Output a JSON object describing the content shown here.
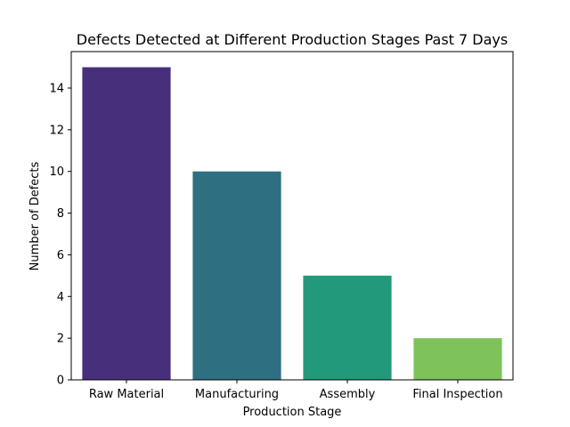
{
  "chart_data": {
    "type": "bar",
    "title": "Defects Detected at Different Production Stages Past 7 Days",
    "xlabel": "Production Stage",
    "ylabel": "Number of Defects",
    "categories": [
      "Raw Material",
      "Manufacturing",
      "Assembly",
      "Final Inspection"
    ],
    "values": [
      15,
      10,
      5,
      2
    ],
    "colors": [
      "#482f7c",
      "#2e6f82",
      "#229a79",
      "#7dc35a"
    ],
    "ylim": [
      0,
      15.75
    ],
    "yticks": [
      0,
      2,
      4,
      6,
      8,
      10,
      12,
      14
    ],
    "grid": false,
    "legend": "none"
  }
}
